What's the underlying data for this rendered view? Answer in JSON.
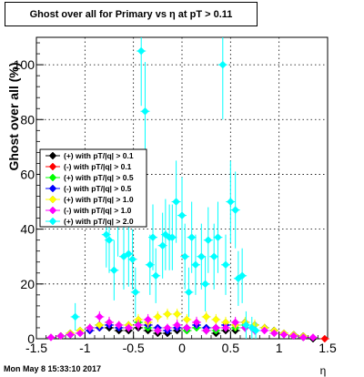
{
  "chart_data": {
    "type": "scatter",
    "title": "Ghost over all for Primary vs   η at pT > 0.11",
    "xlabel": "η",
    "ylabel": "Ghost over all (%)",
    "xlim": [
      -1.5,
      1.5
    ],
    "ylim": [
      0,
      110
    ],
    "x_ticks": [
      -1.5,
      -1,
      -0.5,
      0,
      0.5,
      1,
      1.5
    ],
    "y_ticks": [
      0,
      20,
      40,
      60,
      80,
      100
    ],
    "grid": true,
    "legend_position": "left",
    "footer": "Mon May  8 15:33:10 2017",
    "series": [
      {
        "name": "(+) with pT/|q| > 0.1",
        "color": "#000000",
        "x": [
          -1.35,
          -1.25,
          -1.15,
          -1.05,
          -0.95,
          -0.85,
          -0.75,
          -0.65,
          -0.55,
          -0.45,
          -0.35,
          -0.25,
          -0.15,
          -0.05,
          0.05,
          0.15,
          0.25,
          0.35,
          0.45,
          0.55,
          0.65,
          0.75,
          0.85,
          0.95,
          1.05,
          1.15,
          1.25,
          1.35
        ],
        "y": [
          0.5,
          1,
          2,
          3,
          4,
          5,
          4,
          3,
          3,
          4,
          3,
          2,
          2,
          3,
          3,
          4,
          3,
          2,
          3,
          3,
          4,
          5,
          4,
          3,
          2,
          1,
          0.5,
          0
        ],
        "err": [
          0,
          0,
          0,
          0,
          0,
          0,
          0,
          0,
          0,
          0,
          0,
          0,
          0,
          0,
          0,
          0,
          0,
          0,
          0,
          0,
          0,
          0,
          0,
          0,
          0,
          0,
          0,
          0
        ]
      },
      {
        "name": "(-) with pT/|q| > 0.1",
        "color": "#ff0000",
        "x": [
          -1.35,
          -1.25,
          -1.15,
          -1.05,
          -0.95,
          -0.85,
          -0.75,
          -0.65,
          -0.55,
          -0.45,
          -0.35,
          -0.25,
          -0.15,
          -0.05,
          0.05,
          0.15,
          0.25,
          0.35,
          0.45,
          0.55,
          0.65,
          0.75,
          0.85,
          0.95,
          1.05,
          1.15,
          1.25,
          1.35,
          1.47
        ],
        "y": [
          0.5,
          1,
          1.5,
          2,
          3,
          4,
          5,
          4,
          4,
          5,
          5,
          4,
          3,
          4,
          4,
          5,
          4,
          4,
          5,
          5,
          6,
          5,
          4,
          3,
          2,
          1.5,
          1,
          0.5,
          0
        ],
        "err": [
          0,
          0,
          0,
          0,
          0,
          0,
          0,
          0,
          0,
          0,
          0,
          0,
          0,
          0,
          0,
          0,
          0,
          0,
          0,
          0,
          0,
          0,
          0,
          0,
          0,
          0,
          0,
          0,
          0
        ]
      },
      {
        "name": "(+) with pT/|q| > 0.5",
        "color": "#00ff00",
        "x": [
          -1.35,
          -1.25,
          -1.15,
          -1.05,
          -0.95,
          -0.85,
          -0.75,
          -0.65,
          -0.55,
          -0.45,
          -0.35,
          -0.25,
          -0.15,
          -0.05,
          0.05,
          0.15,
          0.25,
          0.35,
          0.45,
          0.55,
          0.65,
          0.75,
          0.85,
          0.95,
          1.05,
          1.15,
          1.25,
          1.35
        ],
        "y": [
          0.5,
          1,
          2,
          3,
          4,
          5,
          5,
          4,
          5,
          6,
          4,
          3,
          3,
          4,
          3,
          4,
          4,
          3,
          4,
          4,
          5,
          5,
          4,
          3,
          2,
          1.5,
          1,
          0.5
        ],
        "err": [
          0,
          0,
          0,
          0,
          0,
          0,
          0,
          0,
          0,
          0,
          0,
          0,
          0,
          0,
          0,
          0,
          0,
          0,
          0,
          0,
          0,
          0,
          0,
          0,
          0,
          0,
          0,
          0
        ]
      },
      {
        "name": "(-) with pT/|q| > 0.5",
        "color": "#0000ff",
        "x": [
          -1.35,
          -1.25,
          -1.15,
          -1.05,
          -0.95,
          -0.85,
          -0.75,
          -0.65,
          -0.55,
          -0.45,
          -0.35,
          -0.25,
          -0.15,
          -0.05,
          0.05,
          0.15,
          0.25,
          0.35,
          0.45,
          0.55,
          0.65,
          0.75,
          0.85,
          0.95,
          1.05,
          1.15,
          1.25,
          1.35
        ],
        "y": [
          0.5,
          1,
          1.5,
          2,
          3,
          4,
          5,
          4,
          4,
          5,
          5,
          4,
          3,
          4,
          4,
          5,
          4,
          4,
          5,
          5,
          6,
          5,
          4,
          3,
          2,
          1.5,
          1,
          0.5
        ],
        "err": [
          0,
          0,
          0,
          0,
          0,
          0,
          0,
          0,
          0,
          0,
          0,
          0,
          0,
          0,
          0,
          0,
          0,
          0,
          0,
          0,
          0,
          0,
          0,
          0,
          0,
          0,
          0,
          0
        ]
      },
      {
        "name": "(+) with pT/|q| > 1.0",
        "color": "#ffff00",
        "x": [
          -1.35,
          -1.25,
          -1.15,
          -1.05,
          -0.95,
          -0.85,
          -0.75,
          -0.65,
          -0.55,
          -0.45,
          -0.35,
          -0.25,
          -0.15,
          -0.05,
          0.05,
          0.15,
          0.25,
          0.35,
          0.45,
          0.55,
          0.65,
          0.75,
          0.85,
          0.95,
          1.05,
          1.15,
          1.25,
          1.35
        ],
        "y": [
          0.5,
          1,
          2,
          3,
          4,
          5,
          6,
          5,
          5,
          7,
          6,
          8,
          9,
          9,
          7,
          6,
          8,
          7,
          6,
          5,
          6,
          5,
          4,
          3,
          2,
          1.5,
          1,
          0.5
        ],
        "err": [
          0.5,
          0.5,
          1,
          1,
          1.5,
          1.5,
          2,
          1.5,
          1.5,
          2,
          2,
          2,
          2,
          2,
          2,
          2,
          2,
          2,
          2,
          2,
          2,
          2,
          1.5,
          1,
          1,
          0.5,
          0.5,
          0.5
        ]
      },
      {
        "name": "(-) with pT/|q| > 1.0",
        "color": "#ff00ff",
        "x": [
          -1.35,
          -1.25,
          -1.15,
          -1.05,
          -0.95,
          -0.85,
          -0.75,
          -0.65,
          -0.55,
          -0.45,
          -0.35,
          -0.25,
          -0.15,
          -0.05,
          0.05,
          0.15,
          0.25,
          0.35,
          0.45,
          0.55,
          0.65,
          0.75,
          0.85,
          0.95,
          1.05,
          1.15,
          1.25,
          1.35
        ],
        "y": [
          0.5,
          1,
          1.5,
          2,
          4,
          8,
          6,
          5,
          4,
          5,
          7,
          3,
          4,
          5,
          4,
          6,
          3,
          4,
          4,
          6,
          4,
          3,
          3,
          2,
          1.5,
          1,
          0.5,
          0.5
        ],
        "err": [
          0.5,
          0.5,
          1,
          1,
          1.5,
          2,
          2,
          1.5,
          1.5,
          2,
          2,
          1.5,
          1.5,
          2,
          1.5,
          2,
          1.5,
          1.5,
          1.5,
          2,
          1.5,
          1.5,
          1,
          1,
          1,
          0.5,
          0.5,
          0.5
        ]
      },
      {
        "name": "(+) with pT/|q| > 2.0",
        "color": "#00ffff",
        "x": [
          -1.1,
          -0.78,
          -0.75,
          -0.7,
          -0.66,
          -0.6,
          -0.55,
          -0.51,
          -0.48,
          -0.42,
          -0.38,
          -0.33,
          -0.3,
          -0.27,
          -0.2,
          -0.17,
          -0.13,
          -0.1,
          -0.06,
          0.0,
          0.03,
          0.07,
          0.1,
          0.14,
          0.2,
          0.24,
          0.27,
          0.33,
          0.37,
          0.42,
          0.45,
          0.5,
          0.55,
          0.58,
          0.62,
          0.66,
          0.72,
          0.76
        ],
        "y": [
          8,
          38,
          36,
          25,
          44,
          30,
          31,
          29,
          17,
          105,
          83,
          27,
          37,
          23,
          34,
          38,
          37,
          37,
          50,
          45,
          30,
          17,
          37,
          27,
          30,
          20,
          36,
          30,
          37,
          100,
          27,
          50,
          47,
          22,
          23,
          5,
          4,
          3
        ],
        "err": [
          5,
          12,
          12,
          11,
          14,
          12,
          12,
          11,
          9,
          20,
          18,
          11,
          12,
          10,
          12,
          13,
          12,
          12,
          15,
          14,
          12,
          9,
          13,
          11,
          12,
          10,
          12,
          12,
          13,
          20,
          11,
          15,
          14,
          10,
          10,
          5,
          4,
          3
        ]
      }
    ]
  }
}
